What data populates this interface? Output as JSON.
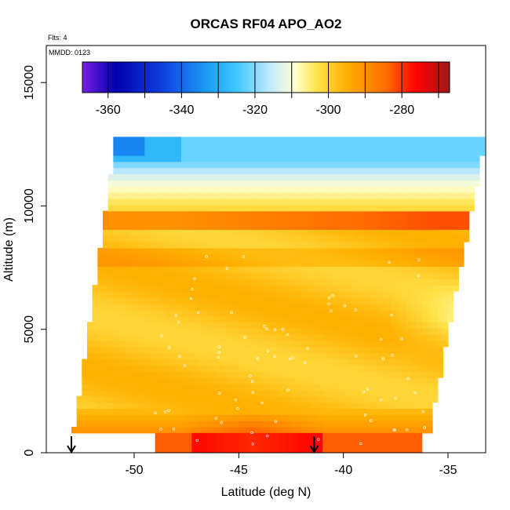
{
  "chart_data": {
    "type": "heatmap",
    "title": "ORCAS RF04 APO_AO2",
    "notes": {
      "flights": "Flts: 4",
      "date": "MMDD: 0123"
    },
    "xlabel": "Latitude (deg N)",
    "ylabel": "Altitude (m)",
    "xlim": [
      -54.2,
      -33.2
    ],
    "ylim": [
      0,
      16500
    ],
    "x_ticks": [
      -50,
      -45,
      -40,
      -35
    ],
    "x_tick_labels": [
      "-50",
      "-45",
      "-40",
      "-35"
    ],
    "y_ticks": [
      0,
      5000,
      10000,
      15000
    ],
    "y_tick_labels": [
      "0",
      "5000",
      "10000",
      "15000"
    ],
    "colorbar": {
      "range": [
        -367,
        -267
      ],
      "ticks": [
        -360,
        -340,
        -320,
        -300,
        -280
      ],
      "tick_labels": [
        "-360",
        "-340",
        "-320",
        "-300",
        "-280"
      ],
      "color_stops": [
        {
          "v": -367,
          "c": "#7a1fe0"
        },
        {
          "v": -358,
          "c": "#0000b0"
        },
        {
          "v": -345,
          "c": "#1040e0"
        },
        {
          "v": -333,
          "c": "#1b9df5"
        },
        {
          "v": -325,
          "c": "#3ec8ff"
        },
        {
          "v": -316,
          "c": "#bfe9ff"
        },
        {
          "v": -309,
          "c": "#ffffd0"
        },
        {
          "v": -303,
          "c": "#ffe34a"
        },
        {
          "v": -295,
          "c": "#ffb000"
        },
        {
          "v": -284,
          "c": "#ff6a00"
        },
        {
          "v": -276,
          "c": "#ff0000"
        },
        {
          "v": -267,
          "c": "#a01818"
        }
      ]
    },
    "field": {
      "lower_left_lat": -53.0,
      "lower_right_lat": -36.0,
      "upper_left_lat": -51.0,
      "upper_right_lat": -33.3,
      "bottom_alt": 800,
      "top_alt": 12700,
      "cell_lat": 0.25,
      "cell_alt": 250
    },
    "flight_markers_lat": [
      -53.0,
      -41.4
    ]
  }
}
